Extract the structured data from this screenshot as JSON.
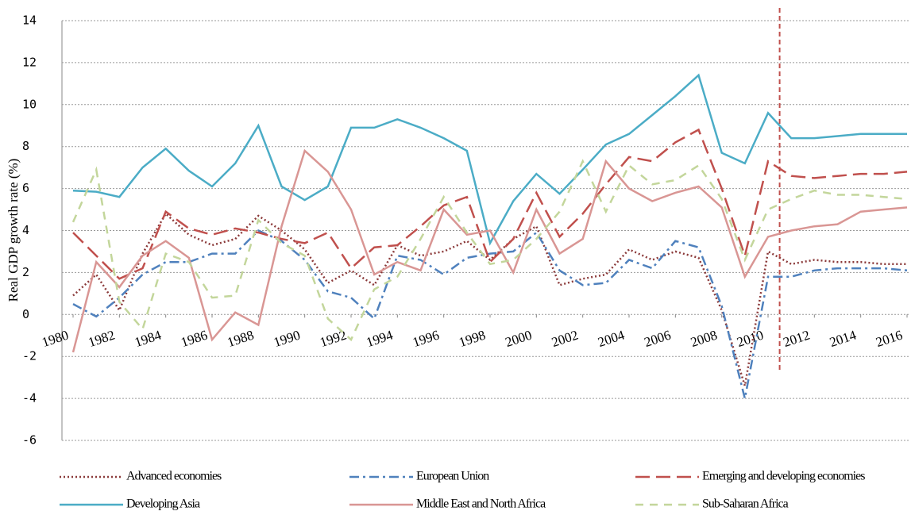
{
  "chart_data": {
    "type": "line",
    "ylabel": "Real GDP growth rate (%)",
    "x": [
      1980,
      1981,
      1982,
      1983,
      1984,
      1985,
      1986,
      1987,
      1988,
      1989,
      1990,
      1991,
      1992,
      1993,
      1994,
      1995,
      1996,
      1997,
      1998,
      1999,
      2000,
      2001,
      2002,
      2003,
      2004,
      2005,
      2006,
      2007,
      2008,
      2009,
      2010,
      2011,
      2012,
      2013,
      2014,
      2015,
      2016
    ],
    "xlim": [
      1980,
      2016
    ],
    "xticks": [
      1980,
      1982,
      1984,
      1986,
      1988,
      1990,
      1992,
      1994,
      1996,
      1998,
      2000,
      2002,
      2004,
      2006,
      2008,
      2010,
      2012,
      2014,
      2016
    ],
    "ylim": [
      -6,
      14
    ],
    "yticks": [
      -6,
      -4,
      -2,
      0,
      2,
      4,
      6,
      8,
      10,
      12,
      14
    ],
    "grid": true,
    "legend": "bottom",
    "forecast_line": {
      "x": 2010.5,
      "color": "#c0504d"
    },
    "series": [
      {
        "name": "Advanced economies",
        "color": "#8b3a3a",
        "linestyle": "dotted",
        "values": [
          0.9,
          1.9,
          0.2,
          2.9,
          4.8,
          3.8,
          3.3,
          3.6,
          4.7,
          4.0,
          3.1,
          1.5,
          2.1,
          1.4,
          3.3,
          2.8,
          3.0,
          3.5,
          2.6,
          3.6,
          4.2,
          1.4,
          1.7,
          1.9,
          3.1,
          2.6,
          3.0,
          2.7,
          0.2,
          -3.4,
          3.0,
          2.4,
          2.6,
          2.5,
          2.5,
          2.4,
          2.4
        ]
      },
      {
        "name": "European Union",
        "color": "#4f81bd",
        "linestyle": "dashdot",
        "values": [
          0.5,
          -0.1,
          0.8,
          1.9,
          2.5,
          2.5,
          2.9,
          2.9,
          4.0,
          3.5,
          2.6,
          1.1,
          0.8,
          -0.2,
          2.8,
          2.6,
          1.9,
          2.7,
          2.9,
          3.0,
          3.9,
          2.1,
          1.4,
          1.5,
          2.6,
          2.2,
          3.5,
          3.2,
          0.4,
          -4.0,
          1.8,
          1.8,
          2.1,
          2.2,
          2.2,
          2.2,
          2.1
        ]
      },
      {
        "name": "Emerging and developing economies",
        "color": "#c0504d",
        "linestyle": "longdash",
        "values": [
          3.9,
          2.8,
          1.7,
          2.2,
          4.9,
          4.1,
          3.8,
          4.1,
          3.9,
          3.6,
          3.4,
          3.9,
          2.2,
          3.2,
          3.3,
          4.2,
          5.2,
          5.6,
          2.5,
          3.6,
          5.8,
          3.7,
          4.8,
          6.2,
          7.5,
          7.3,
          8.2,
          8.8,
          6.0,
          2.8,
          7.3,
          6.6,
          6.5,
          6.6,
          6.7,
          6.7,
          6.8
        ]
      },
      {
        "name": "Developing Asia",
        "color": "#4bacc6",
        "linestyle": "solid",
        "values": [
          5.9,
          5.85,
          5.6,
          7.0,
          7.9,
          6.85,
          6.1,
          7.2,
          9.0,
          6.1,
          5.45,
          6.1,
          8.9,
          8.9,
          9.3,
          8.9,
          8.4,
          7.8,
          3.4,
          5.4,
          6.7,
          5.75,
          6.9,
          8.1,
          8.6,
          9.5,
          10.4,
          11.4,
          7.7,
          7.2,
          9.6,
          8.4,
          8.4,
          8.5,
          8.6,
          8.6,
          8.6
        ]
      },
      {
        "name": "Middle East and North Africa",
        "color": "#d99694",
        "linestyle": "solid",
        "values": [
          -1.8,
          2.5,
          1.3,
          2.8,
          3.5,
          2.7,
          -1.2,
          0.1,
          -0.5,
          4.2,
          7.8,
          6.8,
          5.0,
          1.9,
          2.5,
          2.1,
          5.0,
          3.8,
          4.0,
          2.0,
          5.0,
          2.9,
          3.6,
          7.3,
          6.0,
          5.4,
          5.8,
          6.1,
          5.1,
          1.8,
          3.7,
          4.0,
          4.2,
          4.3,
          4.9,
          5.0,
          5.1
        ]
      },
      {
        "name": "Sub-Saharan Africa",
        "color": "#c3d69b",
        "linestyle": "dashed",
        "values": [
          4.4,
          6.9,
          0.6,
          -0.7,
          2.9,
          2.5,
          0.8,
          0.9,
          4.5,
          3.4,
          2.8,
          -0.2,
          -1.2,
          1.2,
          1.8,
          3.6,
          5.6,
          3.9,
          2.4,
          2.6,
          3.6,
          4.9,
          7.3,
          4.9,
          7.1,
          6.2,
          6.4,
          7.1,
          5.5,
          2.6,
          5.0,
          5.5,
          5.9,
          5.7,
          5.7,
          5.6,
          5.5
        ]
      }
    ]
  }
}
